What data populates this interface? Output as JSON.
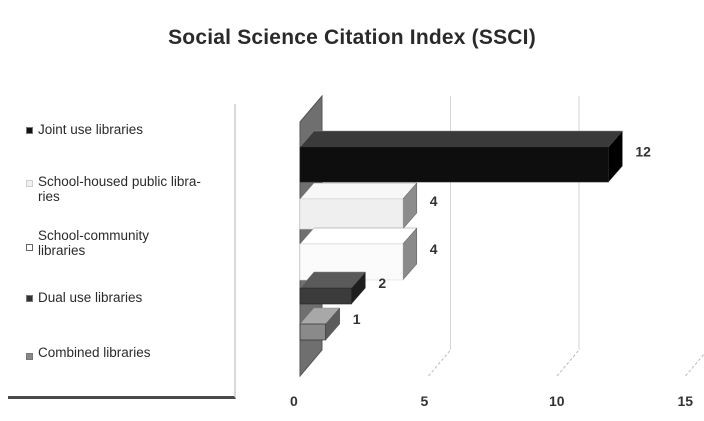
{
  "chart_data": {
    "type": "bar",
    "orientation": "horizontal",
    "style": "3d",
    "title": "Social Science Citation Index (SSCI)",
    "categories": [
      "Joint use libraries",
      "School-housed public libra-\nries",
      "School-community\n libraries",
      "Dual use libraries",
      "Combined libraries"
    ],
    "values": [
      12,
      4,
      4,
      2,
      1
    ],
    "value_labels": [
      "12",
      "4",
      "4",
      "2",
      "1"
    ],
    "xlim": [
      0,
      15
    ],
    "x_ticks": [
      0,
      5,
      10,
      15
    ],
    "x_tick_labels": [
      "0",
      "5",
      "10",
      "15"
    ],
    "legend": [
      {
        "label": "Joint use libraries",
        "color": "#111111"
      },
      {
        "label": "School-housed public libra-\nries",
        "color": "#eeeeee"
      },
      {
        "label": "School-community\n libraries",
        "color": "#fafafa"
      },
      {
        "label": "Dual use libraries",
        "color": "#3a3a3a"
      },
      {
        "label": "Combined libraries",
        "color": "#8a8a8a"
      }
    ],
    "legend_position": "left",
    "grid": true
  }
}
